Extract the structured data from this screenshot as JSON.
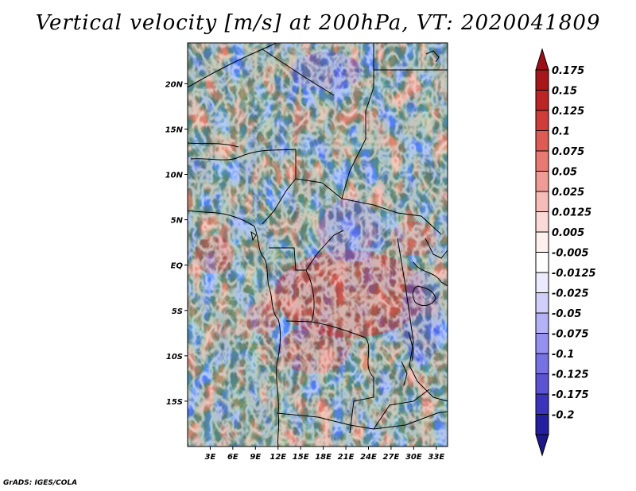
{
  "title": "Vertical velocity [m/s] at 200hPa, VT: 2020041809",
  "credit": "GrADS: IGES/COLA",
  "map": {
    "lat_range": [
      -20,
      24.5
    ],
    "lon_range": [
      0,
      34.5
    ],
    "lat_ticks": [
      {
        "value": 20,
        "label": "20N"
      },
      {
        "value": 15,
        "label": "15N"
      },
      {
        "value": 10,
        "label": "10N"
      },
      {
        "value": 5,
        "label": "5N"
      },
      {
        "value": 0,
        "label": "EQ"
      },
      {
        "value": -5,
        "label": "5S"
      },
      {
        "value": -10,
        "label": "10S"
      },
      {
        "value": -15,
        "label": "15S"
      }
    ],
    "lon_ticks": [
      {
        "value": 3,
        "label": "3E"
      },
      {
        "value": 6,
        "label": "6E"
      },
      {
        "value": 9,
        "label": "9E"
      },
      {
        "value": 12,
        "label": "12E"
      },
      {
        "value": 15,
        "label": "15E"
      },
      {
        "value": 18,
        "label": "18E"
      },
      {
        "value": 21,
        "label": "21E"
      },
      {
        "value": 24,
        "label": "24E"
      },
      {
        "value": 27,
        "label": "27E"
      },
      {
        "value": 30,
        "label": "30E"
      },
      {
        "value": 33,
        "label": "33E"
      }
    ]
  },
  "colorbar": {
    "levels": [
      {
        "label": "0.175",
        "color": "#a8161c"
      },
      {
        "label": "0.15",
        "color": "#bc2426"
      },
      {
        "label": "0.125",
        "color": "#cf3c3a"
      },
      {
        "label": "0.1",
        "color": "#dd5a55"
      },
      {
        "label": "0.075",
        "color": "#e77b74"
      },
      {
        "label": "0.05",
        "color": "#ef9c96"
      },
      {
        "label": "0.025",
        "color": "#f6bcb8"
      },
      {
        "label": "0.0125",
        "color": "#fadad7"
      },
      {
        "label": "0.005",
        "color": "#fdf0ef"
      },
      {
        "label": "-0.005",
        "color": "#ffffff"
      },
      {
        "label": "-0.0125",
        "color": "#ecebfd"
      },
      {
        "label": "-0.025",
        "color": "#d1cffa"
      },
      {
        "label": "-0.05",
        "color": "#b4b1f5"
      },
      {
        "label": "-0.075",
        "color": "#9591ee"
      },
      {
        "label": "-0.1",
        "color": "#7772e3"
      },
      {
        "label": "-0.125",
        "color": "#5a54d3"
      },
      {
        "label": "-0.175",
        "color": "#3a34bb"
      },
      {
        "label": "-0.2",
        "color": "#241fa0"
      }
    ],
    "top_cap_color": "#9c1018",
    "bottom_cap_color": "#1c1888"
  }
}
